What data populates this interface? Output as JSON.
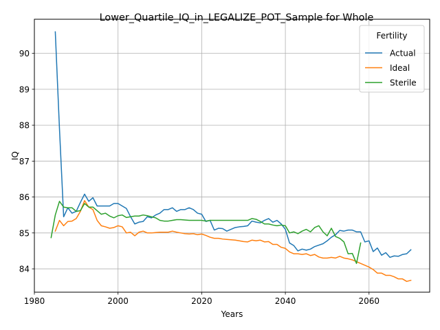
{
  "chart_data": {
    "type": "line",
    "title": "Lower_Quartile_IQ_in_LEGALIZE_POT_Sample for Whole",
    "xlabel": "Years",
    "ylabel": "IQ",
    "xlim": [
      1980,
      2074.5
    ],
    "ylim": [
      83.35,
      90.95
    ],
    "xticks": [
      1980,
      2000,
      2020,
      2040,
      2060
    ],
    "yticks": [
      84,
      85,
      86,
      87,
      88,
      89,
      90
    ],
    "grid": true,
    "legend": {
      "title": "Fertility",
      "placement": "top-right"
    },
    "series": [
      {
        "name": "Actual",
        "color": "#1f77b4",
        "points": [
          [
            1985,
            90.6
          ],
          [
            1986,
            87.9
          ],
          [
            1987,
            85.45
          ],
          [
            1988,
            85.7
          ],
          [
            1989,
            85.55
          ],
          [
            1990,
            85.6
          ],
          [
            1991,
            85.85
          ],
          [
            1992,
            86.08
          ],
          [
            1993,
            85.88
          ],
          [
            1994,
            85.98
          ],
          [
            1995,
            85.75
          ],
          [
            1996,
            85.75
          ],
          [
            1997,
            85.75
          ],
          [
            1998,
            85.75
          ],
          [
            1999,
            85.82
          ],
          [
            2000,
            85.82
          ],
          [
            2001,
            85.75
          ],
          [
            2002,
            85.68
          ],
          [
            2003,
            85.45
          ],
          [
            2004,
            85.25
          ],
          [
            2005,
            85.3
          ],
          [
            2006,
            85.32
          ],
          [
            2007,
            85.45
          ],
          [
            2008,
            85.42
          ],
          [
            2009,
            85.5
          ],
          [
            2010,
            85.55
          ],
          [
            2011,
            85.65
          ],
          [
            2012,
            85.65
          ],
          [
            2013,
            85.7
          ],
          [
            2014,
            85.6
          ],
          [
            2015,
            85.65
          ],
          [
            2016,
            85.65
          ],
          [
            2017,
            85.7
          ],
          [
            2018,
            85.65
          ],
          [
            2019,
            85.55
          ],
          [
            2020,
            85.52
          ],
          [
            2021,
            85.32
          ],
          [
            2022,
            85.35
          ],
          [
            2023,
            85.08
          ],
          [
            2024,
            85.13
          ],
          [
            2025,
            85.12
          ],
          [
            2026,
            85.05
          ],
          [
            2027,
            85.1
          ],
          [
            2028,
            85.15
          ],
          [
            2029,
            85.17
          ],
          [
            2030,
            85.18
          ],
          [
            2031,
            85.2
          ],
          [
            2032,
            85.33
          ],
          [
            2033,
            85.3
          ],
          [
            2034,
            85.28
          ],
          [
            2035,
            85.35
          ],
          [
            2036,
            85.4
          ],
          [
            2037,
            85.3
          ],
          [
            2038,
            85.35
          ],
          [
            2039,
            85.25
          ],
          [
            2040,
            85.1
          ],
          [
            2041,
            84.72
          ],
          [
            2042,
            84.65
          ],
          [
            2043,
            84.5
          ],
          [
            2044,
            84.55
          ],
          [
            2045,
            84.52
          ],
          [
            2046,
            84.55
          ],
          [
            2047,
            84.62
          ],
          [
            2048,
            84.66
          ],
          [
            2049,
            84.7
          ],
          [
            2050,
            84.78
          ],
          [
            2051,
            84.88
          ],
          [
            2052,
            84.95
          ],
          [
            2053,
            85.07
          ],
          [
            2054,
            85.05
          ],
          [
            2055,
            85.08
          ],
          [
            2056,
            85.08
          ],
          [
            2057,
            85.03
          ],
          [
            2058,
            85.03
          ],
          [
            2059,
            84.75
          ],
          [
            2060,
            84.78
          ],
          [
            2061,
            84.48
          ],
          [
            2062,
            84.58
          ],
          [
            2063,
            84.38
          ],
          [
            2064,
            84.45
          ],
          [
            2065,
            84.32
          ],
          [
            2066,
            84.36
          ],
          [
            2067,
            84.35
          ],
          [
            2068,
            84.4
          ],
          [
            2069,
            84.42
          ],
          [
            2070,
            84.53
          ]
        ]
      },
      {
        "name": "Ideal",
        "color": "#ff7f0e",
        "points": [
          [
            1985,
            85.05
          ],
          [
            1986,
            85.35
          ],
          [
            1987,
            85.2
          ],
          [
            1988,
            85.32
          ],
          [
            1989,
            85.33
          ],
          [
            1990,
            85.4
          ],
          [
            1991,
            85.6
          ],
          [
            1992,
            85.9
          ],
          [
            1993,
            85.72
          ],
          [
            1994,
            85.65
          ],
          [
            1995,
            85.35
          ],
          [
            1996,
            85.2
          ],
          [
            1997,
            85.17
          ],
          [
            1998,
            85.13
          ],
          [
            1999,
            85.15
          ],
          [
            2000,
            85.2
          ],
          [
            2001,
            85.17
          ],
          [
            2002,
            85.0
          ],
          [
            2003,
            85.02
          ],
          [
            2004,
            84.92
          ],
          [
            2005,
            85.02
          ],
          [
            2006,
            85.05
          ],
          [
            2007,
            85.0
          ],
          [
            2008,
            85.0
          ],
          [
            2009,
            85.01
          ],
          [
            2010,
            85.02
          ],
          [
            2011,
            85.02
          ],
          [
            2012,
            85.02
          ],
          [
            2013,
            85.05
          ],
          [
            2014,
            85.02
          ],
          [
            2015,
            85.0
          ],
          [
            2016,
            84.98
          ],
          [
            2017,
            84.97
          ],
          [
            2018,
            84.98
          ],
          [
            2019,
            84.95
          ],
          [
            2020,
            84.97
          ],
          [
            2021,
            84.93
          ],
          [
            2022,
            84.88
          ],
          [
            2023,
            84.85
          ],
          [
            2024,
            84.85
          ],
          [
            2025,
            84.83
          ],
          [
            2026,
            84.82
          ],
          [
            2027,
            84.81
          ],
          [
            2028,
            84.8
          ],
          [
            2029,
            84.78
          ],
          [
            2030,
            84.76
          ],
          [
            2031,
            84.75
          ],
          [
            2032,
            84.8
          ],
          [
            2033,
            84.78
          ],
          [
            2034,
            84.8
          ],
          [
            2035,
            84.75
          ],
          [
            2036,
            84.76
          ],
          [
            2037,
            84.68
          ],
          [
            2038,
            84.68
          ],
          [
            2039,
            84.6
          ],
          [
            2040,
            84.57
          ],
          [
            2041,
            84.47
          ],
          [
            2042,
            84.42
          ],
          [
            2043,
            84.42
          ],
          [
            2044,
            84.4
          ],
          [
            2045,
            84.42
          ],
          [
            2046,
            84.37
          ],
          [
            2047,
            84.4
          ],
          [
            2048,
            84.33
          ],
          [
            2049,
            84.3
          ],
          [
            2050,
            84.3
          ],
          [
            2051,
            84.32
          ],
          [
            2052,
            84.3
          ],
          [
            2053,
            84.35
          ],
          [
            2054,
            84.3
          ],
          [
            2055,
            84.28
          ],
          [
            2056,
            84.25
          ],
          [
            2057,
            84.2
          ],
          [
            2058,
            84.15
          ],
          [
            2059,
            84.1
          ],
          [
            2060,
            84.05
          ],
          [
            2061,
            83.98
          ],
          [
            2062,
            83.88
          ],
          [
            2063,
            83.88
          ],
          [
            2064,
            83.82
          ],
          [
            2065,
            83.82
          ],
          [
            2066,
            83.78
          ],
          [
            2067,
            83.72
          ],
          [
            2068,
            83.72
          ],
          [
            2069,
            83.65
          ],
          [
            2070,
            83.68
          ]
        ]
      },
      {
        "name": "Sterile",
        "color": "#2ca02c",
        "points": [
          [
            1984,
            84.87
          ],
          [
            1985,
            85.5
          ],
          [
            1986,
            85.88
          ],
          [
            1987,
            85.72
          ],
          [
            1988,
            85.7
          ],
          [
            1989,
            85.7
          ],
          [
            1990,
            85.6
          ],
          [
            1991,
            85.62
          ],
          [
            1992,
            85.82
          ],
          [
            1993,
            85.72
          ],
          [
            1994,
            85.72
          ],
          [
            1995,
            85.62
          ],
          [
            1996,
            85.52
          ],
          [
            1997,
            85.55
          ],
          [
            1998,
            85.47
          ],
          [
            1999,
            85.42
          ],
          [
            2000,
            85.48
          ],
          [
            2001,
            85.5
          ],
          [
            2002,
            85.43
          ],
          [
            2003,
            85.45
          ],
          [
            2004,
            85.47
          ],
          [
            2005,
            85.47
          ],
          [
            2006,
            85.5
          ],
          [
            2007,
            85.48
          ],
          [
            2008,
            85.45
          ],
          [
            2009,
            85.42
          ],
          [
            2010,
            85.35
          ],
          [
            2011,
            85.33
          ],
          [
            2012,
            85.33
          ],
          [
            2013,
            85.35
          ],
          [
            2014,
            85.37
          ],
          [
            2015,
            85.37
          ],
          [
            2016,
            85.36
          ],
          [
            2017,
            85.35
          ],
          [
            2018,
            85.35
          ],
          [
            2019,
            85.35
          ],
          [
            2020,
            85.35
          ],
          [
            2021,
            85.33
          ],
          [
            2022,
            85.35
          ],
          [
            2023,
            85.35
          ],
          [
            2024,
            85.35
          ],
          [
            2025,
            85.35
          ],
          [
            2026,
            85.35
          ],
          [
            2027,
            85.35
          ],
          [
            2028,
            85.35
          ],
          [
            2029,
            85.35
          ],
          [
            2030,
            85.35
          ],
          [
            2031,
            85.35
          ],
          [
            2032,
            85.4
          ],
          [
            2033,
            85.38
          ],
          [
            2034,
            85.32
          ],
          [
            2035,
            85.25
          ],
          [
            2036,
            85.25
          ],
          [
            2037,
            85.22
          ],
          [
            2038,
            85.2
          ],
          [
            2039,
            85.22
          ],
          [
            2040,
            85.2
          ],
          [
            2041,
            85.0
          ],
          [
            2042,
            85.03
          ],
          [
            2043,
            84.98
          ],
          [
            2044,
            85.05
          ],
          [
            2045,
            85.1
          ],
          [
            2046,
            85.03
          ],
          [
            2047,
            85.15
          ],
          [
            2048,
            85.2
          ],
          [
            2049,
            85.03
          ],
          [
            2050,
            84.92
          ],
          [
            2051,
            85.13
          ],
          [
            2052,
            84.9
          ],
          [
            2053,
            84.85
          ],
          [
            2054,
            84.75
          ],
          [
            2055,
            84.42
          ],
          [
            2056,
            84.43
          ],
          [
            2057,
            84.15
          ],
          [
            2058,
            84.72
          ]
        ]
      }
    ]
  }
}
